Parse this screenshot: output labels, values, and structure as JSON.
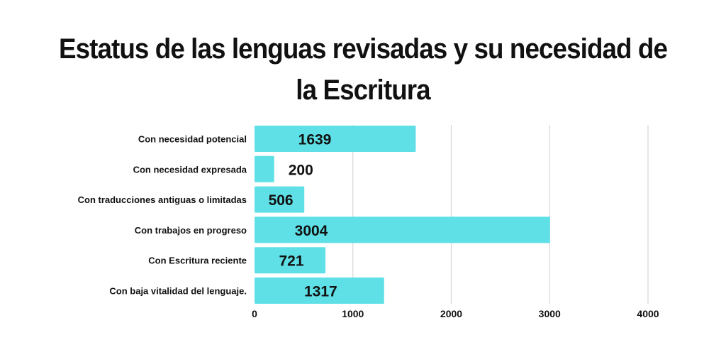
{
  "chart_data": {
    "type": "bar",
    "orientation": "horizontal",
    "title": "Estatus de las lenguas revisadas y su necesidad de la Escritura",
    "title_lines": [
      "Estatus de las lenguas revisadas y su necesidad de",
      "la Escritura"
    ],
    "categories": [
      "Con necesidad potencial",
      "Con necesidad expresada",
      "Con traducciones antiguas o limitadas",
      "Con trabajos en progreso",
      "Con Escritura reciente",
      "Con baja vitalidad del lenguaje."
    ],
    "values": [
      1639,
      200,
      506,
      3004,
      721,
      1317
    ],
    "value_labels": [
      "1639",
      "200",
      "506",
      "3004",
      "721",
      "1317"
    ],
    "xlim": [
      0,
      4000
    ],
    "x_ticks": [
      0,
      1000,
      2000,
      3000,
      4000
    ],
    "x_tick_labels": [
      "0",
      "1000",
      "2000",
      "3000",
      "4000"
    ],
    "xlabel": "",
    "ylabel": "",
    "grid": true,
    "legend": "none",
    "bar_color": "#5ee0e6",
    "grid_color": "#d6d6d6"
  }
}
